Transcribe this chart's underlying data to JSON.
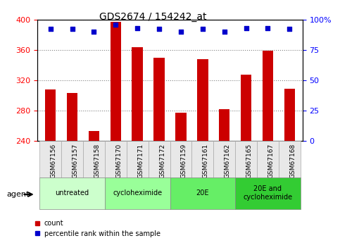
{
  "title": "GDS2674 / 154242_at",
  "samples": [
    "GSM67156",
    "GSM67157",
    "GSM67158",
    "GSM67170",
    "GSM67171",
    "GSM67172",
    "GSM67159",
    "GSM67161",
    "GSM67162",
    "GSM67165",
    "GSM67167",
    "GSM67168"
  ],
  "counts": [
    308,
    303,
    253,
    397,
    363,
    350,
    277,
    348,
    282,
    327,
    359,
    309
  ],
  "percentile_ranks": [
    92,
    92,
    90,
    96,
    93,
    92,
    90,
    92,
    90,
    93,
    93,
    92
  ],
  "ylim": [
    240,
    400
  ],
  "y2lim": [
    0,
    100
  ],
  "yticks": [
    240,
    280,
    320,
    360,
    400
  ],
  "y2ticks": [
    0,
    25,
    50,
    75,
    100
  ],
  "bar_color": "#cc0000",
  "dot_color": "#0000cc",
  "groups": [
    {
      "label": "untreated",
      "start": 0,
      "end": 3,
      "color": "#ccffcc"
    },
    {
      "label": "cycloheximide",
      "start": 3,
      "end": 6,
      "color": "#99ff99"
    },
    {
      "label": "20E",
      "start": 6,
      "end": 9,
      "color": "#66ee66"
    },
    {
      "label": "20E and\ncycloheximide",
      "start": 9,
      "end": 12,
      "color": "#33cc33"
    }
  ],
  "xlabel_agent": "agent",
  "legend_count_label": "count",
  "legend_pct_label": "percentile rank within the sample",
  "bar_width": 0.5
}
